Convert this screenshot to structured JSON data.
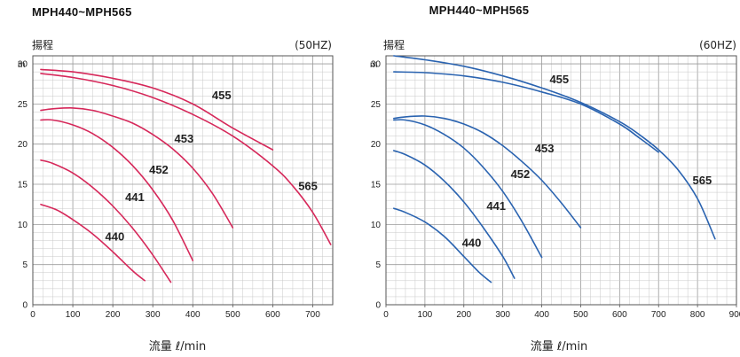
{
  "chart_data": [
    {
      "type": "line",
      "title": "MPH440~MPH565",
      "subtitle": "(50HZ)",
      "ylabel": "揚程",
      "yunit": "m",
      "xlabel": "流量 ℓ/min",
      "xlim": [
        0,
        750
      ],
      "ylim": [
        0,
        31
      ],
      "xticks": [
        0,
        100,
        200,
        300,
        400,
        500,
        600,
        700
      ],
      "yticks": [
        0,
        5,
        10,
        15,
        20,
        25,
        30
      ],
      "grid": true,
      "color": "#d6285a",
      "series": [
        {
          "name": "440",
          "x": [
            20,
            60,
            100,
            150,
            200,
            250,
            280
          ],
          "y": [
            12.5,
            11.8,
            10.6,
            8.8,
            6.6,
            4.2,
            3.0
          ]
        },
        {
          "name": "441",
          "x": [
            20,
            50,
            100,
            150,
            200,
            250,
            300,
            345
          ],
          "y": [
            18.0,
            17.6,
            16.4,
            14.6,
            12.3,
            9.5,
            6.2,
            2.8
          ]
        },
        {
          "name": "452",
          "x": [
            20,
            50,
            100,
            150,
            200,
            250,
            300,
            350,
            400
          ],
          "y": [
            23.0,
            23.0,
            22.4,
            21.3,
            19.6,
            17.3,
            14.3,
            10.5,
            5.5
          ]
        },
        {
          "name": "453",
          "x": [
            20,
            50,
            100,
            150,
            200,
            250,
            300,
            350,
            400,
            450,
            500
          ],
          "y": [
            24.2,
            24.4,
            24.5,
            24.2,
            23.5,
            22.6,
            21.2,
            19.4,
            17.0,
            13.8,
            9.6
          ]
        },
        {
          "name": "455",
          "x": [
            20,
            100,
            200,
            300,
            400,
            500,
            600
          ],
          "y": [
            29.3,
            29.0,
            28.2,
            27.0,
            25.0,
            22.0,
            19.3
          ]
        },
        {
          "name": "565",
          "x": [
            20,
            100,
            200,
            300,
            400,
            500,
            600,
            650,
            700,
            745
          ],
          "y": [
            28.8,
            28.3,
            27.3,
            25.8,
            23.7,
            21.0,
            17.3,
            14.8,
            11.5,
            7.5
          ]
        }
      ],
      "annotations": [
        {
          "text": "440",
          "x": 205,
          "y": 8.0
        },
        {
          "text": "441",
          "x": 255,
          "y": 12.9
        },
        {
          "text": "452",
          "x": 315,
          "y": 16.3
        },
        {
          "text": "453",
          "x": 378,
          "y": 20.2
        },
        {
          "text": "455",
          "x": 472,
          "y": 25.6
        },
        {
          "text": "565",
          "x": 688,
          "y": 14.3
        }
      ]
    },
    {
      "type": "line",
      "title": "MPH440~MPH565",
      "subtitle": "(60HZ)",
      "ylabel": "揚程",
      "yunit": "m",
      "xlabel": "流量 ℓ/min",
      "xlim": [
        0,
        900
      ],
      "ylim": [
        0,
        31
      ],
      "xticks": [
        0,
        100,
        200,
        300,
        400,
        500,
        600,
        700,
        800,
        900
      ],
      "yticks": [
        0,
        5,
        10,
        15,
        20,
        25,
        30
      ],
      "grid": true,
      "color": "#2a63b0",
      "series": [
        {
          "name": "440",
          "x": [
            20,
            50,
            100,
            150,
            200,
            240,
            270
          ],
          "y": [
            12.0,
            11.5,
            10.3,
            8.5,
            6.0,
            4.0,
            2.8
          ]
        },
        {
          "name": "441",
          "x": [
            20,
            50,
            100,
            150,
            200,
            250,
            300,
            330
          ],
          "y": [
            19.2,
            18.7,
            17.4,
            15.4,
            12.8,
            9.6,
            6.0,
            3.3
          ]
        },
        {
          "name": "452",
          "x": [
            20,
            50,
            100,
            150,
            200,
            250,
            300,
            350,
            400
          ],
          "y": [
            23.0,
            23.0,
            22.4,
            21.2,
            19.5,
            17.1,
            14.1,
            10.3,
            5.9
          ]
        },
        {
          "name": "453",
          "x": [
            20,
            50,
            100,
            150,
            200,
            250,
            300,
            350,
            400,
            450,
            500
          ],
          "y": [
            23.2,
            23.4,
            23.5,
            23.2,
            22.5,
            21.4,
            19.8,
            17.8,
            15.5,
            12.7,
            9.6
          ]
        },
        {
          "name": "455",
          "x": [
            20,
            100,
            200,
            300,
            400,
            500,
            600,
            650,
            700,
            750,
            800,
            845
          ],
          "y": [
            31.0,
            30.5,
            29.7,
            28.5,
            27.0,
            25.2,
            22.8,
            21.2,
            19.3,
            16.8,
            13.2,
            8.2
          ]
        },
        {
          "name": "565",
          "x": [
            20,
            100,
            200,
            300,
            400,
            500,
            600,
            650,
            700
          ],
          "y": [
            29.0,
            28.9,
            28.5,
            27.7,
            26.5,
            25.0,
            22.5,
            20.8,
            19.0
          ]
        }
      ],
      "annotations": [
        {
          "text": "440",
          "x": 220,
          "y": 7.2
        },
        {
          "text": "441",
          "x": 283,
          "y": 11.8
        },
        {
          "text": "452",
          "x": 345,
          "y": 15.8
        },
        {
          "text": "453",
          "x": 407,
          "y": 19.0
        },
        {
          "text": "455",
          "x": 445,
          "y": 27.6
        },
        {
          "text": "565",
          "x": 812,
          "y": 15.0
        }
      ]
    }
  ]
}
